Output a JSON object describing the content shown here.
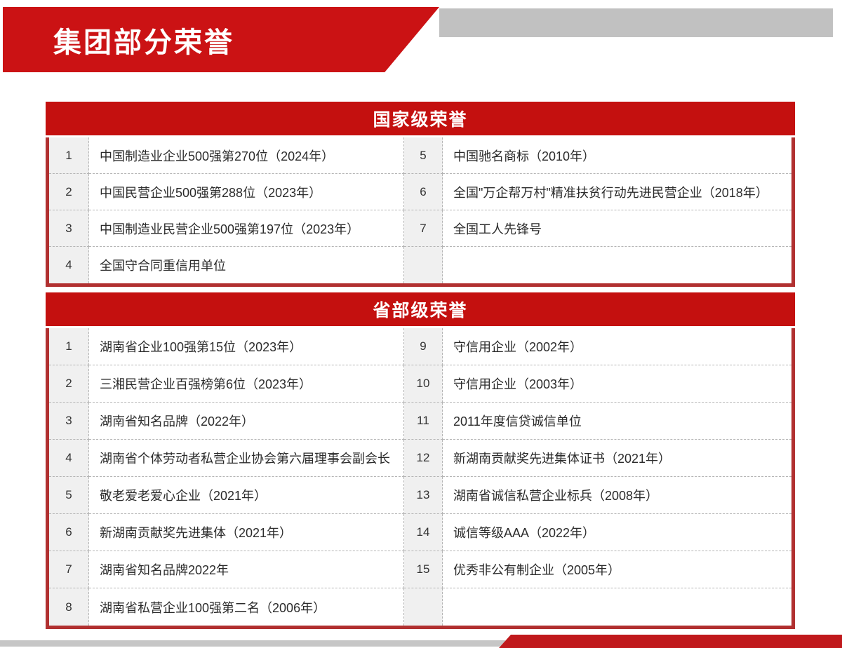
{
  "slide": {
    "title": "集团部分荣誉"
  },
  "colors": {
    "band_red": "#c4100f",
    "banner_red": "#cb1214",
    "table_border_red": "#b13030",
    "top_strip_gray": "#c1c1c1",
    "footer_gray": "#c6c6c6",
    "footer_red": "#c0191c",
    "number_cell_bg": "#f0f0f0"
  },
  "sections": [
    {
      "title": "国家级荣誉",
      "left": [
        {
          "num": "1",
          "text": "中国制造业企业500强第270位（2024年）"
        },
        {
          "num": "2",
          "text": "中国民营企业500强第288位（2023年）"
        },
        {
          "num": "3",
          "text": "中国制造业民营企业500强第197位（2023年）"
        },
        {
          "num": "4",
          "text": "全国守合同重信用单位"
        }
      ],
      "right": [
        {
          "num": "5",
          "text": "中国驰名商标（2010年）"
        },
        {
          "num": "6",
          "text": "全国\"万企帮万村\"精准扶贫行动先进民营企业（2018年）"
        },
        {
          "num": "7",
          "text": "全国工人先锋号"
        },
        {
          "num": "",
          "text": ""
        }
      ]
    },
    {
      "title": "省部级荣誉",
      "left": [
        {
          "num": "1",
          "text": "湖南省企业100强第15位（2023年）"
        },
        {
          "num": "2",
          "text": "三湘民营企业百强榜第6位（2023年）"
        },
        {
          "num": "3",
          "text": "湖南省知名品牌（2022年）"
        },
        {
          "num": "4",
          "text": "湖南省个体劳动者私营企业协会第六届理事会副会长"
        },
        {
          "num": "5",
          "text": "敬老爱老爱心企业（2021年）"
        },
        {
          "num": "6",
          "text": "新湖南贡献奖先进集体（2021年）"
        },
        {
          "num": "7",
          "text": "湖南省知名品牌2022年"
        },
        {
          "num": "8",
          "text": "湖南省私营企业100强第二名（2006年）"
        }
      ],
      "right": [
        {
          "num": "9",
          "text": "守信用企业（2002年）"
        },
        {
          "num": "10",
          "text": "守信用企业（2003年）"
        },
        {
          "num": "11",
          "text": "2011年度信贷诚信单位"
        },
        {
          "num": "12",
          "text": "新湖南贡献奖先进集体证书（2021年）"
        },
        {
          "num": "13",
          "text": "湖南省诚信私营企业标兵（2008年）"
        },
        {
          "num": "14",
          "text": "诚信等级AAA（2022年）"
        },
        {
          "num": "15",
          "text": "优秀非公有制企业（2005年）"
        },
        {
          "num": "",
          "text": ""
        }
      ]
    }
  ]
}
